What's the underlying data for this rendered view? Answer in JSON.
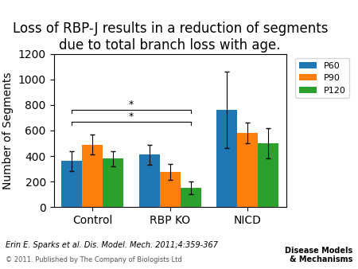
{
  "chart_data": {
    "type": "bar",
    "title": "Loss of RBP-J results in a reduction of segments due to total branch loss with age.",
    "categories": [
      "Control",
      "RBP KO",
      "NICD"
    ],
    "series": [
      {
        "name": "P60",
        "values": [
          360,
          410,
          760
        ],
        "errors": [
          80,
          80,
          300
        ]
      },
      {
        "name": "P90",
        "values": [
          490,
          275,
          580
        ],
        "errors": [
          80,
          60,
          80
        ]
      },
      {
        "name": "P120",
        "values": [
          380,
          150,
          500
        ],
        "errors": [
          60,
          50,
          120
        ]
      }
    ],
    "ylabel": "Number of Segments",
    "ylim": [
      0,
      1200
    ],
    "yticks": [
      0,
      200,
      400,
      600,
      800,
      1000,
      1200
    ],
    "legend": "upper right",
    "annotations": [
      "*",
      "*"
    ],
    "footnotes": [
      "Erin E. Sparks et al. Dis. Model. Mech. 2011;4:359-367",
      "© 2011. Published by The Company of Biologists Ltd",
      "Disease Models\n& Mechanisms"
    ]
  }
}
